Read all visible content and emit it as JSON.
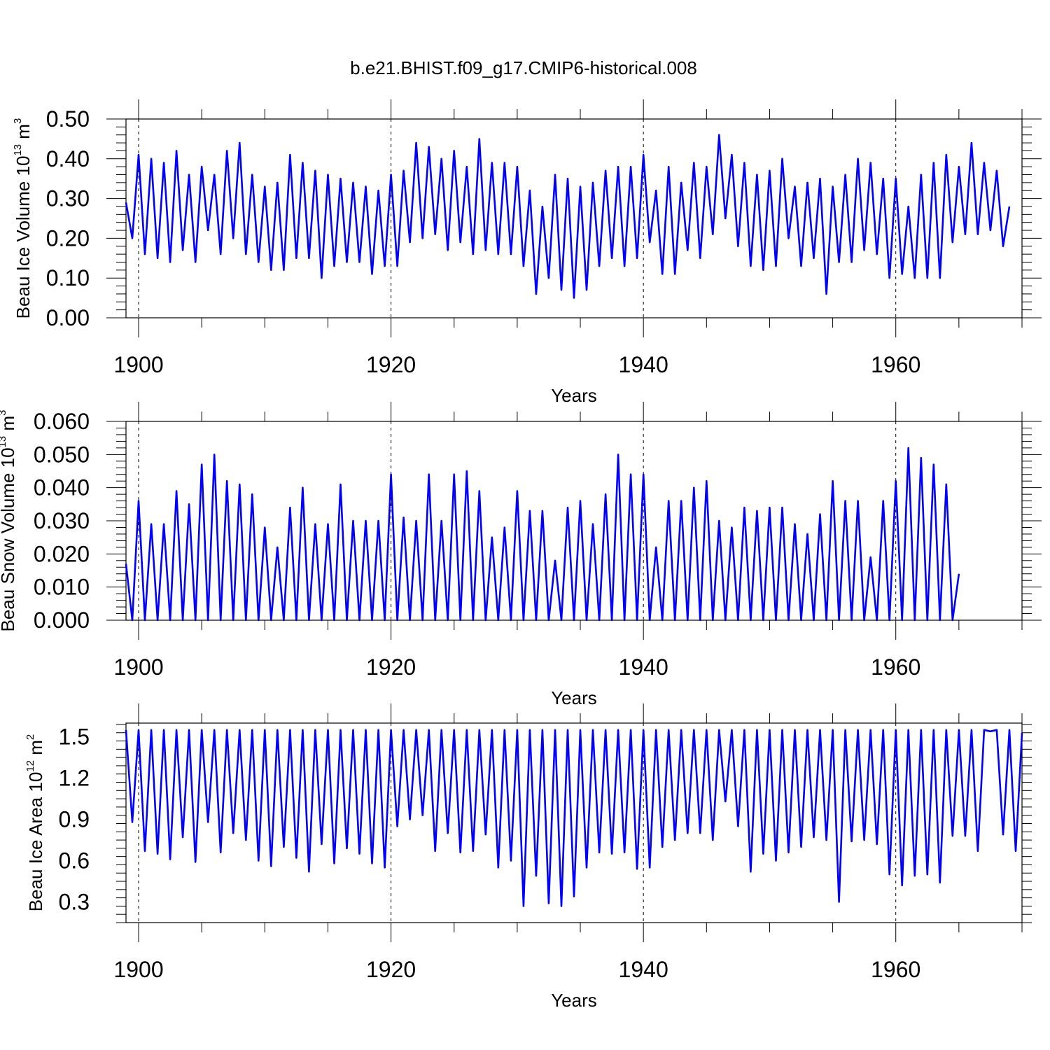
{
  "figure": {
    "title": "b.e21.BHIST.f09_g17.CMIP6-historical.008",
    "line_color": "#0000ff"
  },
  "chart_data": [
    {
      "type": "line",
      "title": "",
      "xlabel": "Years",
      "ylabel_main": "Beau Ice Volume 10",
      "ylabel_exp": "13",
      "ylabel_unit": "m",
      "ylabel_unit_exp": "3",
      "xlim": [
        1899.0,
        1970.0
      ],
      "ylim": [
        0.0,
        0.5
      ],
      "xticks": [
        1900,
        1920,
        1940,
        1960
      ],
      "yticks": [
        0.0,
        0.1,
        0.2,
        0.3,
        0.4,
        0.5
      ],
      "ytick_labels": [
        "0.00",
        "0.10",
        "0.20",
        "0.30",
        "0.40",
        "0.50"
      ],
      "grid": "vertical dashed at major x ticks",
      "series": [
        {
          "name": "Beau Ice Volume",
          "start_year": 1899.0,
          "step": 0.5,
          "values": [
            0.29,
            0.2,
            0.41,
            0.16,
            0.4,
            0.15,
            0.39,
            0.14,
            0.42,
            0.17,
            0.36,
            0.14,
            0.38,
            0.22,
            0.36,
            0.16,
            0.42,
            0.2,
            0.44,
            0.16,
            0.36,
            0.14,
            0.33,
            0.12,
            0.34,
            0.12,
            0.41,
            0.15,
            0.39,
            0.15,
            0.37,
            0.1,
            0.36,
            0.13,
            0.35,
            0.14,
            0.34,
            0.14,
            0.33,
            0.11,
            0.32,
            0.13,
            0.36,
            0.13,
            0.37,
            0.19,
            0.44,
            0.2,
            0.43,
            0.21,
            0.4,
            0.17,
            0.42,
            0.19,
            0.38,
            0.16,
            0.45,
            0.17,
            0.39,
            0.16,
            0.39,
            0.16,
            0.38,
            0.13,
            0.32,
            0.06,
            0.28,
            0.1,
            0.36,
            0.07,
            0.35,
            0.05,
            0.33,
            0.07,
            0.34,
            0.13,
            0.37,
            0.15,
            0.38,
            0.13,
            0.38,
            0.15,
            0.41,
            0.19,
            0.32,
            0.11,
            0.38,
            0.11,
            0.34,
            0.17,
            0.39,
            0.15,
            0.38,
            0.21,
            0.46,
            0.25,
            0.41,
            0.18,
            0.39,
            0.13,
            0.36,
            0.12,
            0.37,
            0.13,
            0.4,
            0.2,
            0.33,
            0.13,
            0.34,
            0.15,
            0.35,
            0.06,
            0.33,
            0.14,
            0.36,
            0.14,
            0.4,
            0.17,
            0.39,
            0.16,
            0.35,
            0.1,
            0.35,
            0.11,
            0.28,
            0.1,
            0.36,
            0.1,
            0.39,
            0.1,
            0.41,
            0.19,
            0.38,
            0.21,
            0.44,
            0.21,
            0.39,
            0.22,
            0.37,
            0.18,
            0.28
          ]
        }
      ]
    },
    {
      "type": "line",
      "title": "",
      "xlabel": "Years",
      "ylabel_main": "Beau Snow Volume 10",
      "ylabel_exp": "13",
      "ylabel_unit": "m",
      "ylabel_unit_exp": "3",
      "xlim": [
        1899.0,
        1970.0
      ],
      "ylim": [
        0.0,
        0.06
      ],
      "xticks": [
        1900,
        1920,
        1940,
        1960
      ],
      "yticks": [
        0.0,
        0.01,
        0.02,
        0.03,
        0.04,
        0.05,
        0.06
      ],
      "ytick_labels": [
        "0.000",
        "0.010",
        "0.020",
        "0.030",
        "0.040",
        "0.050",
        "0.060"
      ],
      "grid": "vertical dashed at major x ticks",
      "series": [
        {
          "name": "Beau Snow Volume",
          "start_year": 1899.0,
          "step": 0.5,
          "values": [
            0.017,
            0.0,
            0.036,
            0.0,
            0.029,
            0.0,
            0.029,
            0.0,
            0.039,
            0.0,
            0.035,
            0.0,
            0.047,
            0.0,
            0.05,
            0.0,
            0.042,
            0.0,
            0.041,
            0.0,
            0.038,
            0.0,
            0.028,
            0.0,
            0.022,
            0.0,
            0.034,
            0.0,
            0.04,
            0.0,
            0.029,
            0.0,
            0.029,
            0.0,
            0.041,
            0.0,
            0.03,
            0.0,
            0.03,
            0.0,
            0.03,
            0.0,
            0.044,
            0.0,
            0.031,
            0.0,
            0.03,
            0.0,
            0.044,
            0.0,
            0.03,
            0.0,
            0.044,
            0.0,
            0.045,
            0.0,
            0.039,
            0.0,
            0.025,
            0.0,
            0.028,
            0.0,
            0.039,
            0.0,
            0.033,
            0.0,
            0.033,
            0.0,
            0.018,
            0.0,
            0.034,
            0.0,
            0.036,
            0.0,
            0.029,
            0.0,
            0.038,
            0.0,
            0.05,
            0.0,
            0.044,
            0.0,
            0.044,
            0.0,
            0.022,
            0.0,
            0.036,
            0.0,
            0.036,
            0.0,
            0.04,
            0.0,
            0.042,
            0.0,
            0.03,
            0.0,
            0.028,
            0.0,
            0.034,
            0.0,
            0.033,
            0.0,
            0.034,
            0.0,
            0.034,
            0.0,
            0.029,
            0.0,
            0.026,
            0.0,
            0.032,
            0.0,
            0.042,
            0.0,
            0.036,
            0.0,
            0.036,
            0.0,
            0.019,
            0.0,
            0.036,
            0.0,
            0.042,
            0.0,
            0.052,
            0.0,
            0.049,
            0.0,
            0.047,
            0.0,
            0.041,
            0.0,
            0.014
          ]
        }
      ]
    },
    {
      "type": "line",
      "title": "",
      "xlabel": "Years",
      "ylabel_main": "Beau Ice Area 10",
      "ylabel_exp": "12",
      "ylabel_unit": "m",
      "ylabel_unit_exp": "2",
      "xlim": [
        1899.0,
        1970.0
      ],
      "ylim": [
        0.15,
        1.6
      ],
      "xticks": [
        1900,
        1920,
        1940,
        1960
      ],
      "yticks": [
        0.3,
        0.6,
        0.9,
        1.2,
        1.5
      ],
      "ytick_labels": [
        "0.3",
        "0.6",
        "0.9",
        "1.2",
        "1.5"
      ],
      "grid": "vertical dashed at major x ticks",
      "series": [
        {
          "name": "Beau Ice Area",
          "start_year": 1899.0,
          "step": 0.5,
          "values": [
            1.55,
            0.88,
            1.55,
            0.67,
            1.55,
            0.65,
            1.55,
            0.61,
            1.55,
            0.77,
            1.55,
            0.59,
            1.55,
            0.88,
            1.55,
            0.66,
            1.55,
            0.8,
            1.55,
            0.75,
            1.55,
            0.6,
            1.55,
            0.56,
            1.55,
            0.7,
            1.55,
            0.62,
            1.55,
            0.52,
            1.55,
            0.72,
            1.55,
            0.58,
            1.55,
            0.69,
            1.55,
            0.65,
            1.55,
            0.58,
            1.55,
            0.55,
            1.55,
            0.85,
            1.55,
            0.9,
            1.55,
            0.93,
            1.55,
            0.67,
            1.55,
            0.8,
            1.55,
            0.66,
            1.55,
            0.67,
            1.55,
            0.79,
            1.55,
            0.55,
            1.55,
            0.6,
            1.55,
            0.27,
            1.55,
            0.49,
            1.55,
            0.29,
            1.55,
            0.27,
            1.55,
            0.34,
            1.55,
            0.55,
            1.55,
            0.66,
            1.55,
            0.65,
            1.55,
            0.66,
            1.55,
            0.54,
            1.55,
            0.55,
            1.55,
            0.7,
            1.55,
            0.75,
            1.55,
            0.8,
            1.55,
            0.8,
            1.55,
            0.75,
            1.55,
            1.03,
            1.55,
            0.85,
            1.55,
            0.52,
            1.55,
            0.65,
            1.55,
            0.6,
            1.55,
            0.66,
            1.55,
            0.7,
            1.55,
            0.77,
            1.55,
            0.75,
            1.55,
            0.3,
            1.55,
            0.74,
            1.55,
            0.75,
            1.55,
            0.72,
            1.55,
            0.5,
            1.55,
            0.42,
            1.55,
            0.49,
            1.55,
            0.5,
            1.55,
            0.44,
            1.55,
            0.78,
            1.55,
            0.78,
            1.55,
            0.67,
            1.55,
            1.54,
            1.55,
            0.79,
            1.55,
            0.67,
            1.53
          ]
        }
      ]
    }
  ]
}
